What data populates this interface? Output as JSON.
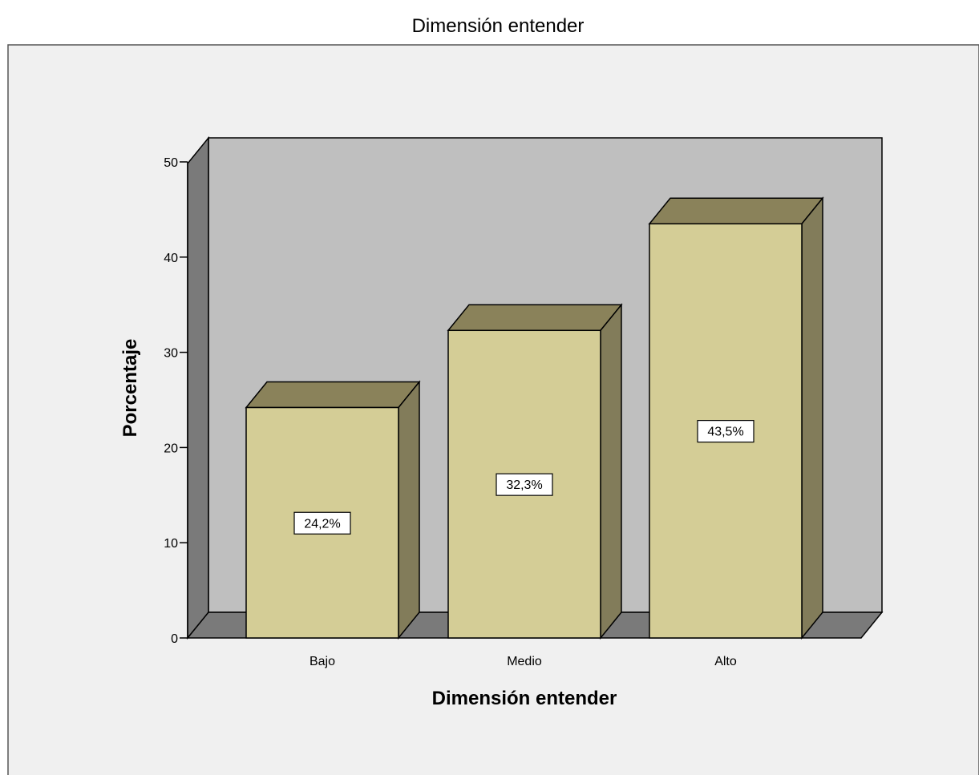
{
  "chart_data": {
    "type": "bar",
    "title": "Dimensión entender",
    "xlabel": "Dimensión entender",
    "ylabel": "Porcentaje",
    "categories": [
      "Bajo",
      "Medio",
      "Alto"
    ],
    "values": [
      24.2,
      32.3,
      43.5
    ],
    "data_labels": [
      "24,2%",
      "32,3%",
      "43,5%"
    ],
    "ylim": [
      0,
      50
    ],
    "yticks": [
      0,
      10,
      20,
      30,
      40,
      50
    ],
    "grid": false,
    "legend": "none",
    "three_d": true
  },
  "colors": {
    "background": "#ffffff",
    "plot_area": "#f0f0f0",
    "back_wall": "#bfbfbf",
    "side_wall": "#7a7a7a",
    "floor": "#7a7a7a",
    "bar_front": "#d4cd96",
    "bar_top": "#8a825a",
    "bar_side": "#827c5a",
    "stroke": "#000000"
  }
}
